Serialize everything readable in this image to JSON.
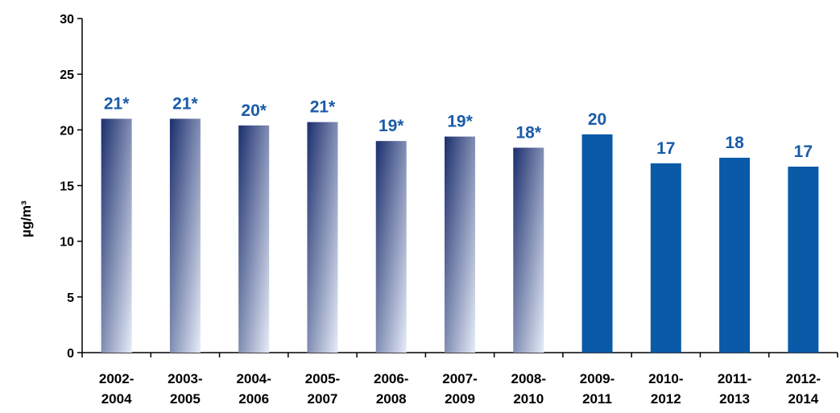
{
  "chart_data": {
    "type": "bar",
    "title": "",
    "xlabel": "",
    "ylabel": "µg/m³",
    "ylim": [
      0,
      30
    ],
    "yticks": [
      0,
      5,
      10,
      15,
      20,
      25,
      30
    ],
    "grid": false,
    "categories": [
      [
        "2002-",
        "2004"
      ],
      [
        "2003-",
        "2005"
      ],
      [
        "2004-",
        "2006"
      ],
      [
        "2005-",
        "2007"
      ],
      [
        "2006-",
        "2008"
      ],
      [
        "2007-",
        "2009"
      ],
      [
        "2008-",
        "2010"
      ],
      [
        "2009-",
        "2011"
      ],
      [
        "2010-",
        "2012"
      ],
      [
        "2011-",
        "2013"
      ],
      [
        "2012-",
        "2014"
      ]
    ],
    "values": [
      21.0,
      21.0,
      20.4,
      20.7,
      19.0,
      19.4,
      18.4,
      19.6,
      17.0,
      17.5,
      16.7
    ],
    "data_labels": [
      "21*",
      "21*",
      "20*",
      "21*",
      "19*",
      "19*",
      "18*",
      "20",
      "17",
      "18",
      "17"
    ],
    "bar_styles": [
      "gradient",
      "gradient",
      "gradient",
      "gradient",
      "gradient",
      "gradient",
      "gradient",
      "solid",
      "solid",
      "solid",
      "solid"
    ],
    "colors": {
      "gradient_dark": "#1c2f6e",
      "gradient_light": "#e6ecf8",
      "solid": "#0a5aa8",
      "label": "#1a5ba8"
    }
  }
}
